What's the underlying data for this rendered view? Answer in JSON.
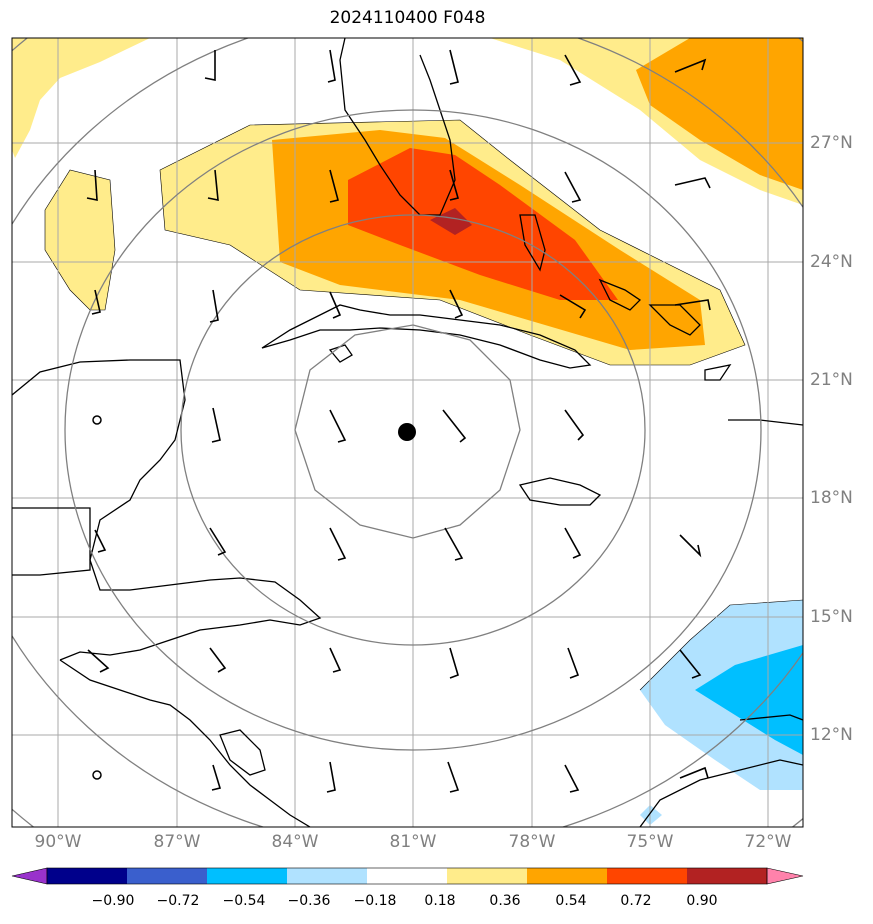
{
  "title": "2024110400 F048",
  "lat_labels": [
    "27°N",
    "24°N",
    "21°N",
    "18°N",
    "15°N",
    "12°N"
  ],
  "lon_labels": [
    "90°W",
    "87°W",
    "84°W",
    "81°W",
    "78°W",
    "75°W",
    "72°W"
  ],
  "colorbar": {
    "ticks": [
      "−0.90",
      "−0.72",
      "−0.54",
      "−0.36",
      "−0.18",
      "0.18",
      "0.36",
      "0.54",
      "0.72",
      "0.90"
    ],
    "colors": [
      "#9932cc",
      "#00008b",
      "#3a5fcd",
      "#00bfff",
      "#b0e2ff",
      "#ffffff",
      "#ffec8b",
      "#ffa500",
      "#ff4500",
      "#b22222",
      "#ff82ab"
    ]
  },
  "colors": {
    "grid": "#a9a9a9",
    "range_rings": "#808080",
    "coast": "#000000",
    "labels": "#808080"
  },
  "markers": {
    "center_dot": "storm-center",
    "small_rings": 2
  }
}
